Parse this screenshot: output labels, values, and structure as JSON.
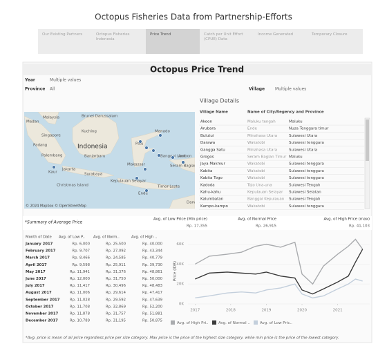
{
  "header": {
    "title": "Octopus Fisheries Data from Partnership-Efforts"
  },
  "tabs": [
    "Our Existing Partners",
    "Octopus Fisheries Indonesia",
    "Price Trend",
    "Catch per Unit Effort (CPUE) Data",
    "Income Generated",
    "Temporary Closure"
  ],
  "dashboard": {
    "title": "Octopus Price Trend",
    "filters": {
      "year_label": "Year",
      "year_value": "Multiple values",
      "province_label": "Province",
      "province_value": "All",
      "village_label": "Village",
      "village_value": "Multiple values"
    },
    "village_details": {
      "title": "Village Details",
      "columns": [
        "Village Name",
        "Name of City/Regency and Province"
      ],
      "rows": [
        [
          "Akoon",
          "Maluku tengah",
          "Maluku"
        ],
        [
          "Arubara",
          "Ende",
          "Nusa Tenggara timur"
        ],
        [
          "Bulutui",
          "Minahasa Utara",
          "Sulawesi Utara"
        ],
        [
          "Darawa",
          "Wakatobi",
          "Sulawesi tenggara"
        ],
        [
          "Gangga Satu",
          "Minahasa Utara",
          "Sulawesi Utara"
        ],
        [
          "Grogos",
          "Seram Bagian Timur",
          "Maluku"
        ],
        [
          "Jaya Makmur",
          "Wakatobi",
          "Sulawesi tenggara"
        ],
        [
          "Kabita",
          "Wakatobi",
          "Sulawesi tenggara"
        ],
        [
          "Kabita Togo",
          "Wakatobi",
          "Sulawesi tenggara"
        ],
        [
          "Kadoda",
          "Tojo Una-una",
          "Sulawesi Tengah"
        ],
        [
          "Kahu-kahu",
          "Kepulauan Selayar",
          "Sulawesi Selatan"
        ],
        [
          "Kalumbatan",
          "Banggai Kepulauan",
          "Sulawesi Tengah"
        ],
        [
          "Kampo-kampo",
          "Wakatobi",
          "Sulawesi tenggara"
        ]
      ]
    },
    "map": {
      "labels": [
        "Medan",
        "Malaysia",
        "Brunei Darussalam",
        "Singapore",
        "Kuching",
        "Manado",
        "Padang",
        "Indonesia",
        "Palu",
        "Palembang",
        "Banjarbaru",
        "Makassar",
        "Banggai Laut",
        "Ambon",
        "Seram Bagian",
        "Jakarta",
        "Kaur",
        "Surabaya",
        "Kepulauan Selayar",
        "Timor-Leste",
        "Ende",
        "Christmas Island",
        "Darwin"
      ],
      "attribution": "© 2024 Mapbox © OpenStreetMap"
    },
    "summary": {
      "title": "*Summary of Average Price",
      "columns": [
        "Avg. of Low Price (Min price)",
        "Avg. of Normal Price",
        "Avg. of High Price (max)"
      ],
      "values": [
        "Rp. 17,355",
        "Rp. 26,915",
        "Rp. 41,103"
      ]
    },
    "monthly_table": {
      "columns": [
        "Month of Date",
        "Avg. of Low P..",
        "Avg. of Norm..",
        "Avg. of High .."
      ],
      "rows": [
        [
          "January 2017",
          "Rp. 6,000",
          "Rp. 25,500",
          "Rp. 40,000"
        ],
        [
          "February 2017",
          "Rp. 9,707",
          "Rp. 27,092",
          "Rp. 43,344"
        ],
        [
          "March 2017",
          "Rp. 8,466",
          "Rp. 24,585",
          "Rp. 40,779"
        ],
        [
          "April 2017",
          "Rp. 9,598",
          "Rp. 25,911",
          "Rp. 39,730"
        ],
        [
          "May 2017",
          "Rp. 11,941",
          "Rp. 31,376",
          "Rp. 48,861"
        ],
        [
          "June 2017",
          "Rp. 12,000",
          "Rp. 31,750",
          "Rp. 50,000"
        ],
        [
          "July 2017",
          "Rp. 11,417",
          "Rp. 30,496",
          "Rp. 48,483"
        ],
        [
          "August 2017",
          "Rp. 11,006",
          "Rp. 29,614",
          "Rp. 47,417"
        ],
        [
          "September 2017",
          "Rp. 11,028",
          "Rp. 29,592",
          "Rp. 47,639"
        ],
        [
          "October 2017",
          "Rp. 11,708",
          "Rp. 32,869",
          "Rp. 52,200"
        ],
        [
          "November 2017",
          "Rp. 11,878",
          "Rp. 31,757",
          "Rp. 51,881"
        ],
        [
          "December 2017",
          "Rp. 10,789",
          "Rp. 31,195",
          "Rp. 50,875"
        ]
      ]
    },
    "footnote": "*Avg. price is mean of all price regardless price per size category. Max price is the price of the highest size category, while min price is the price of the lowest category."
  },
  "chart_data": {
    "type": "line",
    "y_label": "Price (IDR)",
    "x": [
      2017,
      2017.4,
      2017.9,
      2018.3,
      2018.7,
      2019.0,
      2019.4,
      2019.8,
      2020.0,
      2020.3,
      2020.6,
      2021.0,
      2021.3,
      2021.5,
      2021.7
    ],
    "xlim": [
      2016.8,
      2021.9
    ],
    "xticks": [
      2017,
      2018,
      2019,
      2020,
      2021
    ],
    "ylim": [
      0,
      66000
    ],
    "yticks": [
      {
        "value": 0,
        "label": "0K"
      },
      {
        "value": 20000,
        "label": "20K"
      },
      {
        "value": 40000,
        "label": "40K"
      },
      {
        "value": 60000,
        "label": "60K"
      }
    ],
    "grid": true,
    "series": [
      {
        "name": "Avg. of High Pri..",
        "color": "#a9abae",
        "values": [
          40000,
          48000,
          50000,
          52000,
          58000,
          60000,
          57000,
          62000,
          30000,
          20000,
          38000,
          50000,
          58000,
          65000,
          55000
        ]
      },
      {
        "name": "Avg. of Normal ..",
        "color": "#3a3a3a",
        "values": [
          25000,
          31000,
          32000,
          31000,
          30000,
          32000,
          28000,
          26000,
          14000,
          10000,
          15000,
          22000,
          28000,
          42000,
          55000
        ]
      },
      {
        "name": "Avg. of Low Pric..",
        "color": "#c3cfdc",
        "values": [
          6000,
          8000,
          11000,
          12000,
          11000,
          14000,
          16000,
          20000,
          10000,
          6000,
          8000,
          15000,
          20000,
          25000,
          23000
        ]
      }
    ]
  }
}
